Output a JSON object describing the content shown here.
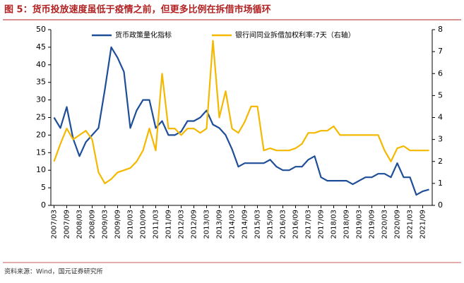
{
  "title": "图 5：货币投放速度虽低于疫情之前，但更多比例在拆借市场循环",
  "source": "资料来源：Wind，国元证券研究所",
  "chart_data": {
    "type": "line",
    "categories": [
      "2007/03",
      null,
      "2007/09",
      null,
      "2008/03",
      null,
      "2008/09",
      null,
      "2009/03",
      null,
      "2009/09",
      null,
      "2010/03",
      null,
      "2010/09",
      null,
      "2011/03",
      null,
      "2011/09",
      null,
      "2012/03",
      null,
      "2012/09",
      null,
      "2013/03",
      null,
      "2013/09",
      null,
      "2014/03",
      null,
      "2014/09",
      null,
      "2015/03",
      null,
      "2015/09",
      null,
      "2016/03",
      null,
      "2016/09",
      null,
      "2017/03",
      null,
      "2017/09",
      null,
      "2018/03",
      null,
      "2018/09",
      null,
      "2019/03",
      null,
      "2019/09",
      null,
      "2020/03",
      null,
      "2020/09",
      null,
      "2021/03",
      null,
      "2021/09",
      null
    ],
    "series": [
      {
        "name": "货币政策量化指标",
        "color": "#1f4e99",
        "axis": "y",
        "values": [
          25,
          22,
          28,
          19,
          14,
          18,
          20,
          22,
          33,
          45,
          42,
          38,
          22,
          27,
          30,
          30,
          22,
          24,
          20,
          20,
          21,
          24,
          24,
          25,
          27,
          23,
          22,
          20,
          16,
          11,
          12,
          12,
          12,
          12,
          13,
          11,
          10,
          10,
          11,
          11,
          13,
          14,
          8,
          7,
          7,
          7,
          7,
          6,
          7,
          8,
          8,
          9,
          9,
          8,
          12,
          8,
          8,
          3,
          4,
          4.5
        ]
      },
      {
        "name": "银行间同业拆借加权利率:7天（右轴）",
        "color": "#f5b800",
        "axis": "y2",
        "values": [
          2,
          2.8,
          3.5,
          3,
          3.2,
          3.4,
          3,
          1.5,
          1,
          1.2,
          1.5,
          1.6,
          1.7,
          2,
          2.5,
          3.5,
          2.5,
          6,
          3.5,
          3.5,
          3.2,
          3.5,
          3.5,
          3.3,
          3.5,
          7.5,
          4,
          5.2,
          3.5,
          3.3,
          3.8,
          4.5,
          4.5,
          2.5,
          2.6,
          2.5,
          2.5,
          2.5,
          2.6,
          2.8,
          3.3,
          3.3,
          3.4,
          3.4,
          3.6,
          3.2,
          3.2,
          3.2,
          3.2,
          3.2,
          3.2,
          3.2,
          2.5,
          2,
          2.6,
          2.7,
          2.5,
          2.5,
          2.5,
          2.5
        ]
      }
    ],
    "ylim": [
      0,
      50
    ],
    "yticks": [
      0,
      5,
      10,
      15,
      20,
      25,
      30,
      35,
      40,
      45,
      50
    ],
    "y2lim": [
      0,
      8
    ],
    "y2ticks": [
      0,
      1,
      2,
      3,
      4,
      5,
      6,
      7,
      8
    ],
    "legend": "top"
  }
}
